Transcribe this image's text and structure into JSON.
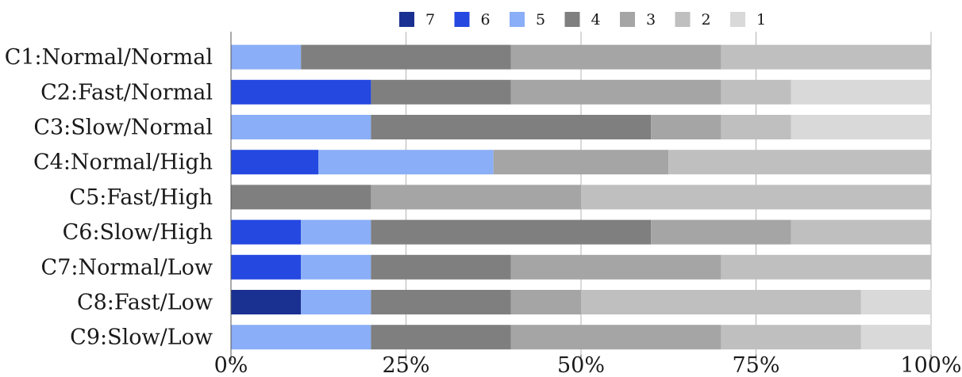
{
  "chart_data": {
    "type": "bar",
    "orientation": "horizontal",
    "stacked": true,
    "percent": true,
    "title": "",
    "xlabel": "",
    "ylabel": "",
    "xlim": [
      0,
      100
    ],
    "grid": true,
    "legend_position": "top",
    "x_ticks": [
      "0%",
      "25%",
      "50%",
      "75%",
      "100%"
    ],
    "categories": [
      "C1:Normal/Normal",
      "C2:Fast/Normal",
      "C3:Slow/Normal",
      "C4:Normal/High",
      "C5:Fast/High",
      "C6:Slow/High",
      "C7:Normal/Low",
      "C8:Fast/Low",
      "C9:Slow/Low"
    ],
    "series": [
      {
        "name": "7",
        "color": "#1a3192",
        "values": [
          0,
          0,
          0,
          0,
          0,
          0,
          0,
          10,
          0
        ]
      },
      {
        "name": "6",
        "color": "#2448e0",
        "values": [
          0,
          20,
          0,
          12.5,
          0,
          10,
          10,
          0,
          0
        ]
      },
      {
        "name": "5",
        "color": "#8aaef7",
        "values": [
          10,
          0,
          20,
          25,
          0,
          10,
          10,
          10,
          20
        ]
      },
      {
        "name": "4",
        "color": "#7f7f7f",
        "values": [
          30,
          20,
          40,
          0,
          20,
          40,
          20,
          20,
          20
        ]
      },
      {
        "name": "3",
        "color": "#a5a5a5",
        "values": [
          30,
          30,
          10,
          25,
          30,
          20,
          30,
          10,
          30
        ]
      },
      {
        "name": "2",
        "color": "#bfbfbf",
        "values": [
          30,
          10,
          10,
          37.5,
          50,
          20,
          30,
          40,
          20
        ]
      },
      {
        "name": "1",
        "color": "#d9d9d9",
        "values": [
          0,
          20,
          20,
          0,
          0,
          0,
          0,
          10,
          10
        ]
      }
    ]
  }
}
